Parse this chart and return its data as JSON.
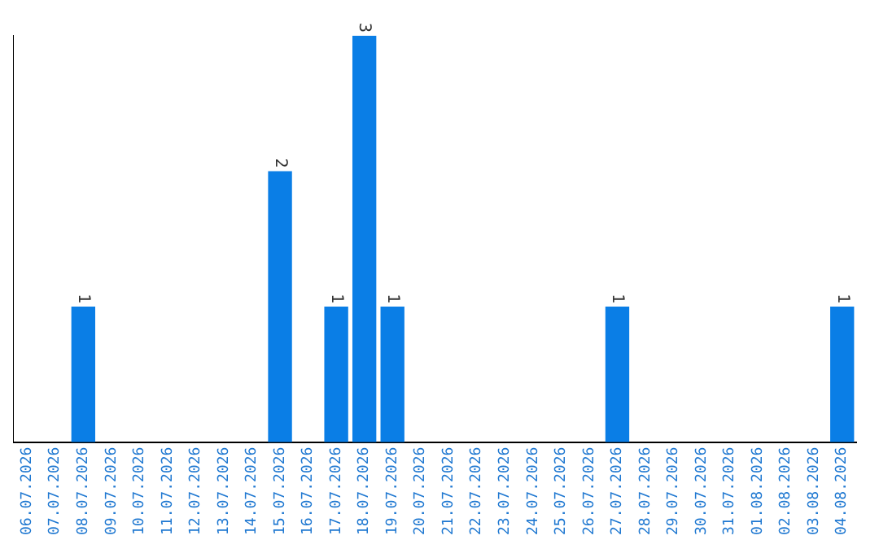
{
  "chart_data": {
    "type": "bar",
    "categories": [
      "06.07.2026",
      "07.07.2026",
      "08.07.2026",
      "09.07.2026",
      "10.07.2026",
      "11.07.2026",
      "12.07.2026",
      "13.07.2026",
      "14.07.2026",
      "15.07.2026",
      "16.07.2026",
      "17.07.2026",
      "18.07.2026",
      "19.07.2026",
      "20.07.2026",
      "21.07.2026",
      "22.07.2026",
      "23.07.2026",
      "24.07.2026",
      "25.07.2026",
      "26.07.2026",
      "27.07.2026",
      "28.07.2026",
      "29.07.2026",
      "30.07.2026",
      "31.07.2026",
      "01.08.2026",
      "02.08.2026",
      "03.08.2026",
      "04.08.2026"
    ],
    "values": [
      0,
      0,
      1,
      0,
      0,
      0,
      0,
      0,
      0,
      2,
      0,
      1,
      3,
      1,
      0,
      0,
      0,
      0,
      0,
      0,
      0,
      1,
      0,
      0,
      0,
      0,
      0,
      0,
      0,
      1
    ],
    "value_labels": [
      null,
      null,
      "1",
      null,
      null,
      null,
      null,
      null,
      null,
      "2",
      null,
      "1",
      "3",
      "1",
      null,
      null,
      null,
      null,
      null,
      null,
      null,
      "1",
      null,
      null,
      null,
      null,
      null,
      null,
      null,
      "1"
    ],
    "color": "#0a7ee6",
    "grid": false,
    "legend": false,
    "tick_labels": "x"
  }
}
